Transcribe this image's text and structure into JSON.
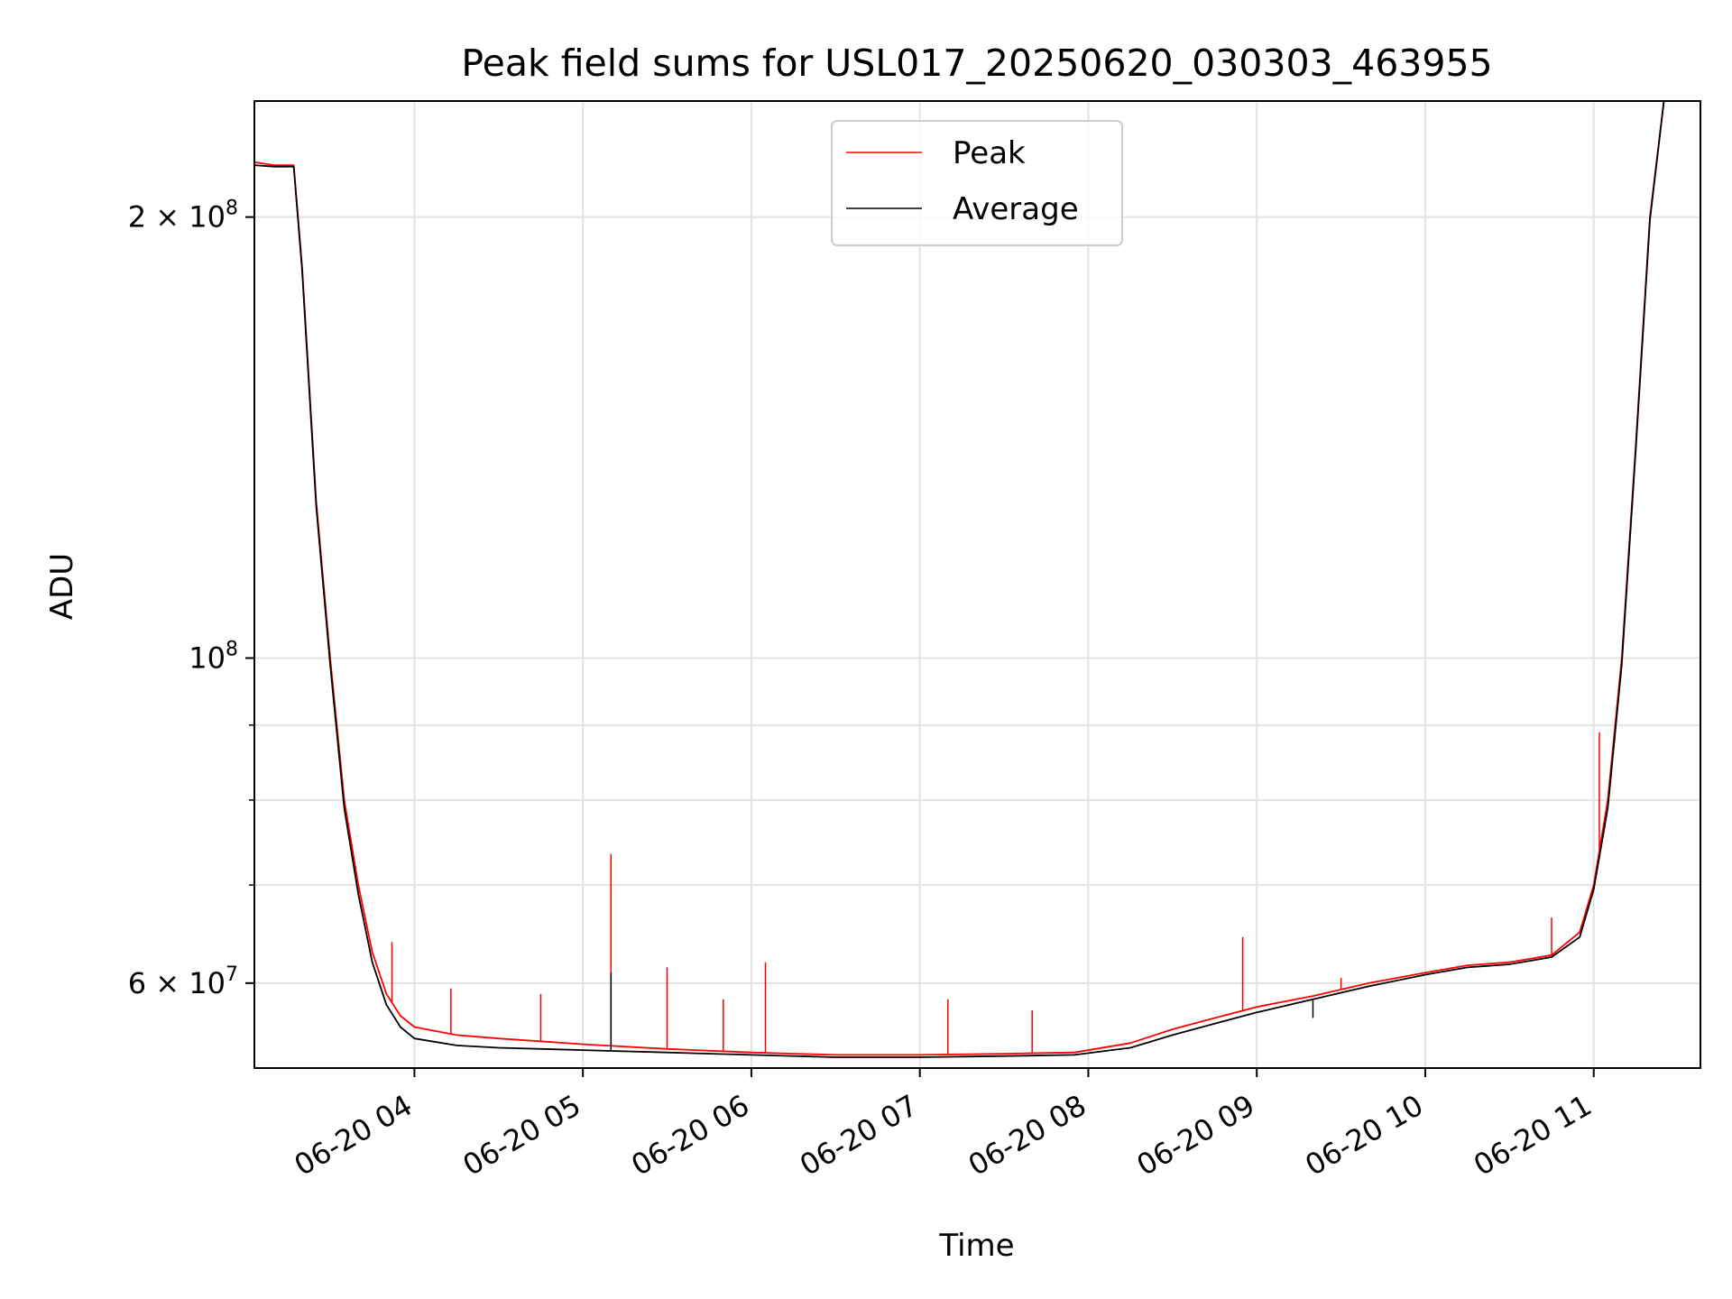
{
  "chart_data": {
    "type": "line",
    "title": "Peak field sums for USL017_20250620_030303_463955",
    "xlabel": "Time",
    "ylabel": "ADU",
    "yscale": "log",
    "grid": true,
    "legend_position": "upper center",
    "xlim": [
      "2025-06-20 03:03",
      "2025-06-20 11:38"
    ],
    "ylim": [
      52500000,
      240000000
    ],
    "x_ticks": [
      {
        "value": "2025-06-20 04:00",
        "label": "06-20 04"
      },
      {
        "value": "2025-06-20 05:00",
        "label": "06-20 05"
      },
      {
        "value": "2025-06-20 06:00",
        "label": "06-20 06"
      },
      {
        "value": "2025-06-20 07:00",
        "label": "06-20 07"
      },
      {
        "value": "2025-06-20 08:00",
        "label": "06-20 08"
      },
      {
        "value": "2025-06-20 09:00",
        "label": "06-20 09"
      },
      {
        "value": "2025-06-20 10:00",
        "label": "06-20 10"
      },
      {
        "value": "2025-06-20 11:00",
        "label": "06-20 11"
      }
    ],
    "y_major_ticks": [
      {
        "value": 60000000,
        "base": "6 × 10",
        "exp": "7"
      },
      {
        "value": 100000000,
        "base": "10",
        "exp": "8"
      },
      {
        "value": 200000000,
        "base": "2 × 10",
        "exp": "8"
      }
    ],
    "y_minor_ticks": [
      70000000,
      80000000,
      90000000
    ],
    "series": [
      {
        "name": "Peak",
        "color": "#ff0000",
        "x": [
          "2025-06-20 03:03",
          "2025-06-20 03:10",
          "2025-06-20 03:17",
          "2025-06-20 03:20",
          "2025-06-20 03:25",
          "2025-06-20 03:30",
          "2025-06-20 03:35",
          "2025-06-20 03:40",
          "2025-06-20 03:45",
          "2025-06-20 03:50",
          "2025-06-20 03:55",
          "2025-06-20 04:00",
          "2025-06-20 04:15",
          "2025-06-20 04:30",
          "2025-06-20 05:00",
          "2025-06-20 05:30",
          "2025-06-20 06:00",
          "2025-06-20 06:30",
          "2025-06-20 07:00",
          "2025-06-20 07:30",
          "2025-06-20 07:55",
          "2025-06-20 08:15",
          "2025-06-20 08:30",
          "2025-06-20 08:45",
          "2025-06-20 09:00",
          "2025-06-20 09:20",
          "2025-06-20 09:40",
          "2025-06-20 10:00",
          "2025-06-20 10:15",
          "2025-06-20 10:30",
          "2025-06-20 10:45",
          "2025-06-20 10:55",
          "2025-06-20 11:00",
          "2025-06-20 11:05",
          "2025-06-20 11:10",
          "2025-06-20 11:15",
          "2025-06-20 11:20",
          "2025-06-20 11:25"
        ],
        "y": [
          218000000,
          217000000,
          217000000,
          185000000,
          128000000,
          100000000,
          80000000,
          70000000,
          63000000,
          59000000,
          57000000,
          56000000,
          55300000,
          55000000,
          54500000,
          54100000,
          53800000,
          53600000,
          53600000,
          53700000,
          53800000,
          54600000,
          55800000,
          56800000,
          57800000,
          58800000,
          60000000,
          61000000,
          61700000,
          62000000,
          62700000,
          65000000,
          70000000,
          80000000,
          100000000,
          140000000,
          200000000,
          240000000
        ],
        "spikes": [
          {
            "x": "2025-06-20 05:10",
            "y": 73500000
          },
          {
            "x": "2025-06-20 06:05",
            "y": 62000000
          },
          {
            "x": "2025-06-20 05:30",
            "y": 61500000
          },
          {
            "x": "2025-06-20 03:52",
            "y": 64000000
          },
          {
            "x": "2025-06-20 04:13",
            "y": 59500000
          },
          {
            "x": "2025-06-20 04:45",
            "y": 59000000
          },
          {
            "x": "2025-06-20 05:50",
            "y": 58500000
          },
          {
            "x": "2025-06-20 07:10",
            "y": 58500000
          },
          {
            "x": "2025-06-20 07:40",
            "y": 57500000
          },
          {
            "x": "2025-06-20 08:55",
            "y": 64500000
          },
          {
            "x": "2025-06-20 09:30",
            "y": 60500000
          },
          {
            "x": "2025-06-20 10:45",
            "y": 66500000
          },
          {
            "x": "2025-06-20 11:02",
            "y": 89000000
          }
        ]
      },
      {
        "name": "Average",
        "color": "#000000",
        "x": [
          "2025-06-20 03:03",
          "2025-06-20 03:10",
          "2025-06-20 03:17",
          "2025-06-20 03:20",
          "2025-06-20 03:25",
          "2025-06-20 03:30",
          "2025-06-20 03:35",
          "2025-06-20 03:40",
          "2025-06-20 03:45",
          "2025-06-20 03:50",
          "2025-06-20 03:55",
          "2025-06-20 04:00",
          "2025-06-20 04:15",
          "2025-06-20 04:30",
          "2025-06-20 05:00",
          "2025-06-20 05:30",
          "2025-06-20 06:00",
          "2025-06-20 06:30",
          "2025-06-20 07:00",
          "2025-06-20 07:30",
          "2025-06-20 07:55",
          "2025-06-20 08:15",
          "2025-06-20 08:30",
          "2025-06-20 08:45",
          "2025-06-20 09:00",
          "2025-06-20 09:20",
          "2025-06-20 09:40",
          "2025-06-20 10:00",
          "2025-06-20 10:15",
          "2025-06-20 10:30",
          "2025-06-20 10:45",
          "2025-06-20 10:55",
          "2025-06-20 11:00",
          "2025-06-20 11:05",
          "2025-06-20 11:10",
          "2025-06-20 11:15",
          "2025-06-20 11:20",
          "2025-06-20 11:25"
        ],
        "y": [
          217000000,
          216500000,
          216500000,
          184000000,
          127000000,
          99000000,
          79000000,
          69000000,
          62000000,
          58000000,
          56000000,
          55000000,
          54400000,
          54200000,
          54000000,
          53800000,
          53600000,
          53400000,
          53400000,
          53500000,
          53600000,
          54200000,
          55300000,
          56300000,
          57300000,
          58500000,
          59700000,
          60800000,
          61500000,
          61800000,
          62500000,
          64500000,
          69500000,
          79000000,
          99000000,
          139000000,
          199000000,
          240000000
        ],
        "spikes": [
          {
            "x": "2025-06-20 05:10",
            "y": 61000000
          },
          {
            "x": "2025-06-20 09:20",
            "y": 56800000
          }
        ]
      }
    ]
  }
}
